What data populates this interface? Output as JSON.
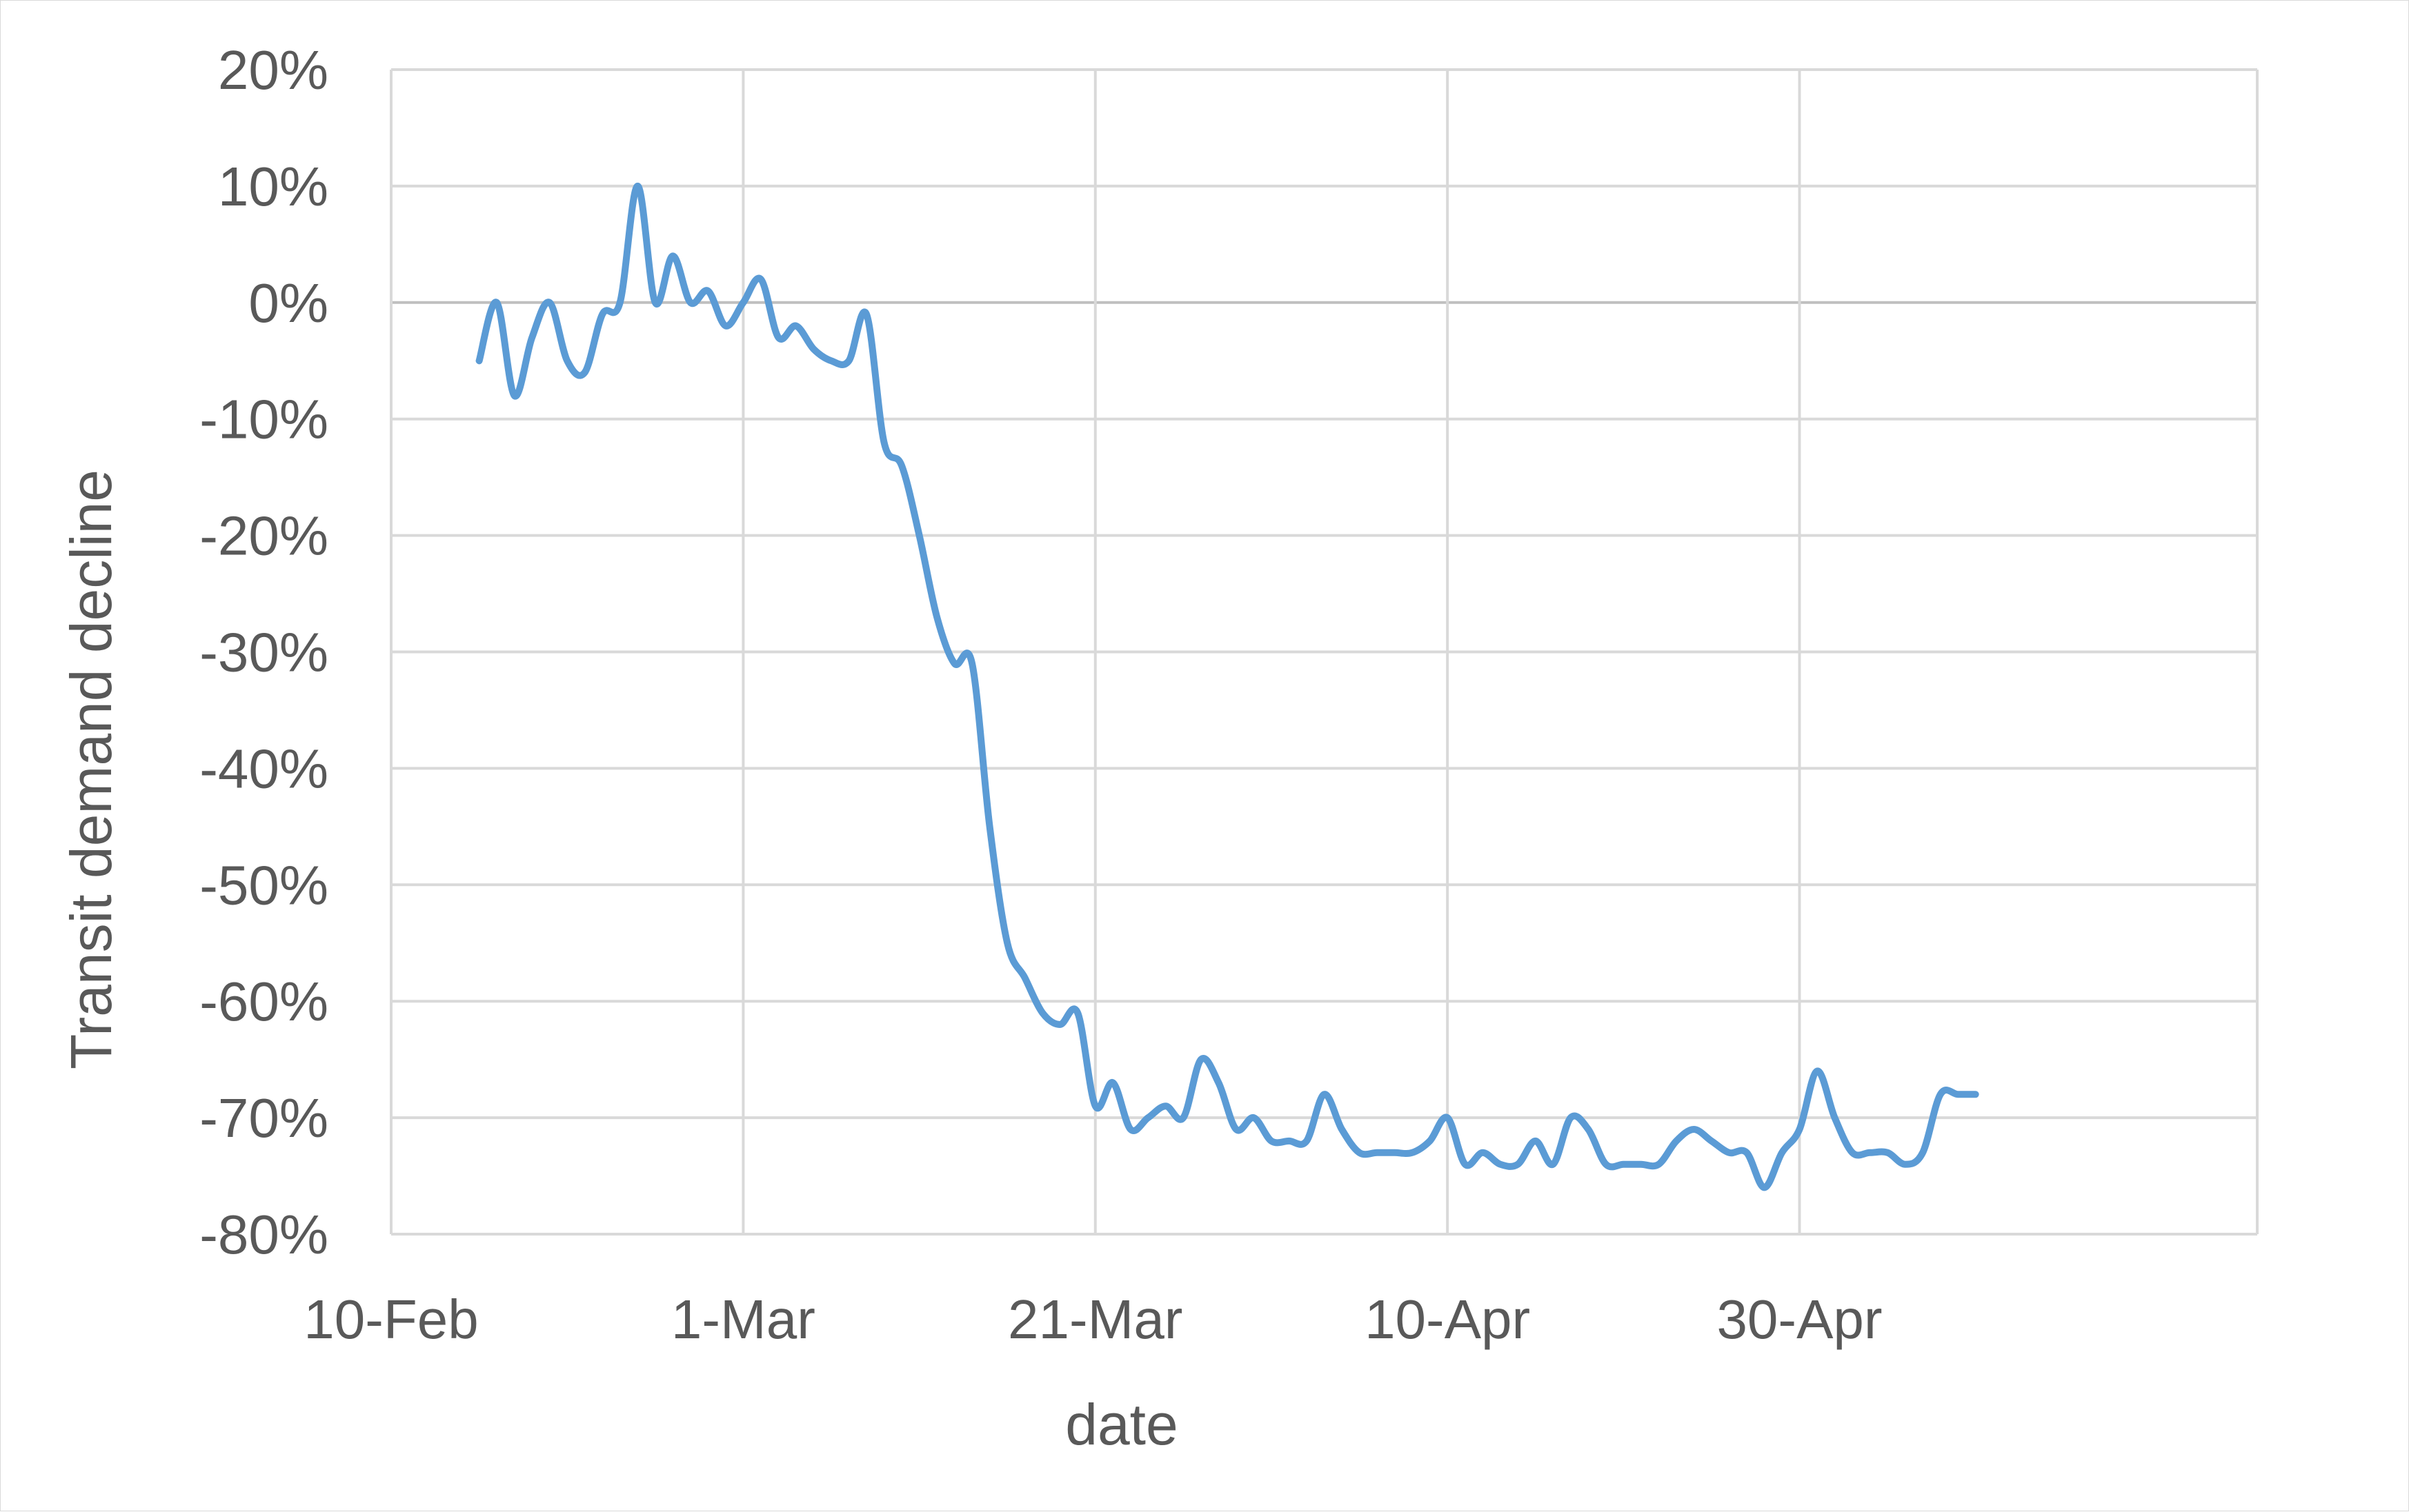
{
  "chart_data": {
    "type": "line",
    "title": "",
    "xlabel": "date",
    "ylabel": "Transit demand decline",
    "x_ticks": [
      "10-Feb",
      "1-Mar",
      "21-Mar",
      "10-Apr",
      "30-Apr"
    ],
    "x_tick_dates": [
      "2020-02-10",
      "2020-03-01",
      "2020-03-21",
      "2020-04-10",
      "2020-04-30"
    ],
    "y_ticks": [
      "20%",
      "10%",
      "0%",
      "-10%",
      "-20%",
      "-30%",
      "-40%",
      "-50%",
      "-60%",
      "-70%",
      "-80%"
    ],
    "y_tick_values": [
      20,
      10,
      0,
      -10,
      -20,
      -30,
      -40,
      -50,
      -60,
      -70,
      -80
    ],
    "xlim": [
      "2020-02-10",
      "2020-05-26"
    ],
    "ylim": [
      -80,
      20
    ],
    "grid": true,
    "legend": "none",
    "series_color": "#5b9bd5",
    "gridline_color": "#d9d9d9",
    "zero_line_color": "#bfbfbf",
    "series": [
      {
        "x": [
          "2020-02-15",
          "2020-02-16",
          "2020-02-17",
          "2020-02-18",
          "2020-02-19",
          "2020-02-20",
          "2020-02-21",
          "2020-02-22",
          "2020-02-23",
          "2020-02-24",
          "2020-02-25",
          "2020-02-26",
          "2020-02-27",
          "2020-02-28",
          "2020-02-29",
          "2020-03-01",
          "2020-03-02",
          "2020-03-03",
          "2020-03-04",
          "2020-03-05",
          "2020-03-06",
          "2020-03-07",
          "2020-03-08",
          "2020-03-09",
          "2020-03-10",
          "2020-03-11",
          "2020-03-12",
          "2020-03-13",
          "2020-03-14",
          "2020-03-15",
          "2020-03-16",
          "2020-03-17",
          "2020-03-18",
          "2020-03-19",
          "2020-03-20",
          "2020-03-21",
          "2020-03-22",
          "2020-03-23",
          "2020-03-24",
          "2020-03-25",
          "2020-03-26",
          "2020-03-27",
          "2020-03-28",
          "2020-03-29",
          "2020-03-30",
          "2020-03-31",
          "2020-04-01",
          "2020-04-02",
          "2020-04-03",
          "2020-04-04",
          "2020-04-05",
          "2020-04-06",
          "2020-04-07",
          "2020-04-08",
          "2020-04-09",
          "2020-04-10",
          "2020-04-11",
          "2020-04-12",
          "2020-04-13",
          "2020-04-14",
          "2020-04-15",
          "2020-04-16",
          "2020-04-17",
          "2020-04-18",
          "2020-04-19",
          "2020-04-20",
          "2020-04-21",
          "2020-04-22",
          "2020-04-23",
          "2020-04-24",
          "2020-04-25",
          "2020-04-26",
          "2020-04-27",
          "2020-04-28",
          "2020-04-29",
          "2020-04-30",
          "2020-05-01",
          "2020-05-02",
          "2020-05-03",
          "2020-05-04",
          "2020-05-05",
          "2020-05-06",
          "2020-05-07",
          "2020-05-08",
          "2020-05-09",
          "2020-05-10"
        ],
        "values": [
          -5,
          0,
          -8,
          -3,
          0,
          -5,
          -6,
          -1,
          0,
          10,
          0,
          4,
          0,
          1,
          -2,
          0,
          2,
          -3,
          -2,
          -4,
          -5,
          -5,
          -1,
          -12,
          -14,
          -20,
          -27,
          -31,
          -31,
          -45,
          -55,
          -58,
          -61,
          -62,
          -61,
          -69,
          -67,
          -71,
          -70,
          -69,
          -70,
          -65,
          -67,
          -71,
          -70,
          -72,
          -72,
          -72,
          -68,
          -71,
          -73,
          -73,
          -73,
          -73,
          -72,
          -70,
          -74,
          -73,
          -74,
          -74,
          -72,
          -74,
          -70,
          -71,
          -74,
          -74,
          -74,
          -74,
          -72,
          -71,
          -72,
          -73,
          -73,
          -76,
          -73,
          -71,
          -66,
          -70,
          -73,
          -73,
          -73,
          -74,
          -73,
          -68,
          -68,
          -68
        ]
      }
    ]
  }
}
